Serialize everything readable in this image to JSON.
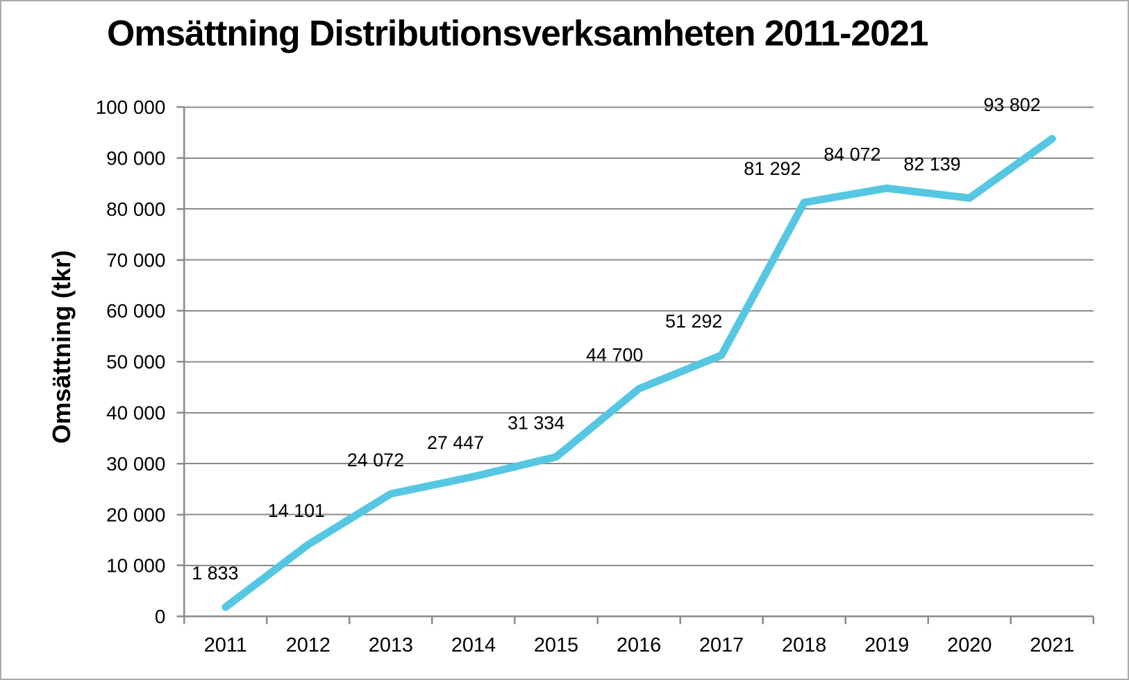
{
  "chart_data": {
    "type": "line",
    "title": "Omsättning Distributionsverksamheten 2011-2021",
    "ylabel": "Omsättning (tkr)",
    "xlabel": "",
    "categories": [
      "2011",
      "2012",
      "2013",
      "2014",
      "2015",
      "2016",
      "2017",
      "2018",
      "2019",
      "2020",
      "2021"
    ],
    "series": [
      {
        "name": "Omsättning",
        "values": [
          1833,
          14101,
          24072,
          27447,
          31334,
          44700,
          51292,
          81292,
          84072,
          82139,
          93802
        ]
      }
    ],
    "data_labels": [
      "1 833",
      "14 101",
      "24 072",
      "27 447",
      "31 334",
      "44 700",
      "51 292",
      "81 292",
      "84 072",
      "82 139",
      "93 802"
    ],
    "y_ticks": [
      0,
      10000,
      20000,
      30000,
      40000,
      50000,
      60000,
      70000,
      80000,
      90000,
      100000
    ],
    "y_tick_labels": [
      "0",
      "10 000",
      "20 000",
      "30 000",
      "40 000",
      "50 000",
      "60 000",
      "70 000",
      "80 000",
      "90 000",
      "100 000"
    ],
    "ylim": [
      0,
      100000
    ],
    "grid": "horizontal",
    "legend": "none",
    "colors": {
      "line": "#56C7E2",
      "grid": "#8a8a8a",
      "axis": "#8a8a8a",
      "text": "#000000",
      "background": "#ffffff",
      "border": "#a9a9a9"
    },
    "label_dx": [
      -15,
      -17,
      -22,
      -26,
      -29,
      -35,
      -40,
      -46,
      -50,
      -54,
      -58
    ],
    "label_dy": -40
  }
}
